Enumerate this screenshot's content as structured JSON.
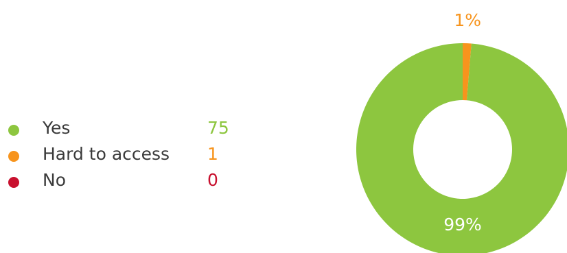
{
  "chart_data": {
    "type": "pie",
    "categories": [
      "Yes",
      "Hard to access",
      "No"
    ],
    "values": [
      75,
      1,
      0
    ],
    "slice_labels": [
      "99%",
      "1%",
      ""
    ],
    "colors": [
      "#8dc63f",
      "#f7941d",
      "#c8102e"
    ],
    "donut": true,
    "legend_position": "left"
  }
}
